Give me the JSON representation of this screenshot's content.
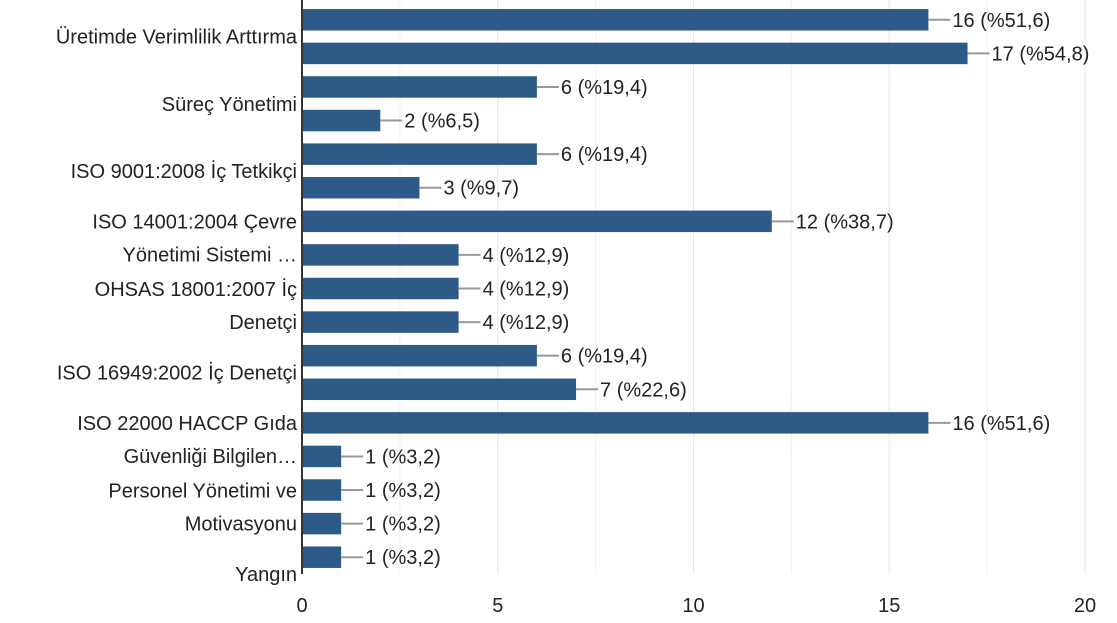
{
  "chart_data": {
    "type": "bar",
    "orientation": "horizontal",
    "title": "",
    "xlabel": "",
    "ylabel": "",
    "xlim": [
      0,
      20
    ],
    "xticks": [
      0,
      5,
      10,
      15,
      20
    ],
    "grid": true,
    "bar_color": "#2e5a87",
    "category_labels": [
      "Üretimde Verimlilik Arttırma",
      "Süreç Yönetimi",
      "",
      "ISO 9001:2008 İç Tetkikçi",
      "",
      "ISO 14001:2004 Çevre Yönetimi Sistemi …",
      "",
      "OHSAS 18001:2007 İç Denetçi",
      "",
      "ISO 16949:2002 İç Denetçi",
      "",
      "ISO 22000 HACCP Gıda Güvenliği Bilgilen…",
      "",
      "Personel Yönetimi ve Motivasyonu",
      "",
      "Yangın",
      ""
    ],
    "values": [
      16,
      17,
      6,
      2,
      6,
      3,
      12,
      4,
      4,
      4,
      6,
      7,
      16,
      1,
      1,
      1,
      1
    ],
    "data_labels": [
      "16 (%51,6)",
      "17 (%54,8)",
      "6 (%19,4)",
      "2 (%6,5)",
      "6 (%19,4)",
      "3 (%9,7)",
      "12 (%38,7)",
      "4 (%12,9)",
      "4 (%12,9)",
      "4 (%12,9)",
      "6 (%19,4)",
      "7 (%22,6)",
      "16 (%51,6)",
      "1 (%3,2)",
      "1 (%3,2)",
      "1 (%3,2)",
      "1 (%3,2)"
    ],
    "y_labels_shown": [
      {
        "lines": [
          "Üretimde Verimlilik Arttırma"
        ]
      },
      {
        "lines": [
          "Süreç Yönetimi"
        ]
      },
      {
        "lines": [
          "ISO 9001:2008 İç Tetkikçi"
        ]
      },
      {
        "lines": [
          "ISO 14001:2004 Çevre",
          "Yönetimi Sistemi …"
        ]
      },
      {
        "lines": [
          "OHSAS 18001:2007 İç",
          "Denetçi"
        ]
      },
      {
        "lines": [
          "ISO 16949:2002 İç Denetçi"
        ]
      },
      {
        "lines": [
          "ISO 22000 HACCP Gıda",
          "Güvenliği Bilgilen…"
        ]
      },
      {
        "lines": [
          "Personel Yönetimi ve",
          "Motivasyonu"
        ]
      },
      {
        "lines": [
          "Yangın"
        ]
      }
    ]
  }
}
